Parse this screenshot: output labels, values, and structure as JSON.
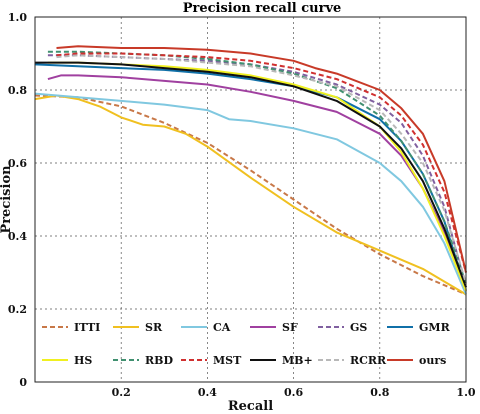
{
  "chart_data": {
    "type": "line",
    "title": "Precision recall curve",
    "xlabel": "Recall",
    "ylabel": "Precision",
    "xlim": [
      0,
      1
    ],
    "ylim": [
      0,
      1
    ],
    "xticks": [
      "0.2",
      "0.4",
      "0.6",
      "0.8",
      "1.0"
    ],
    "yticks": [
      "0",
      "0.2",
      "0.4",
      "0.6",
      "0.8",
      "1.0"
    ],
    "grid": true,
    "legend_position": "bottom-inside",
    "series": [
      {
        "name": "ITTI",
        "color": "#c87848",
        "dash": "dashed",
        "x": [
          0.0,
          0.1,
          0.2,
          0.3,
          0.4,
          0.5,
          0.6,
          0.7,
          0.8,
          0.9,
          1.0
        ],
        "y": [
          0.785,
          0.78,
          0.755,
          0.71,
          0.655,
          0.58,
          0.5,
          0.42,
          0.35,
          0.29,
          0.24
        ]
      },
      {
        "name": "SR",
        "color": "#f0c020",
        "dash": "solid",
        "x": [
          0.0,
          0.05,
          0.1,
          0.15,
          0.2,
          0.25,
          0.3,
          0.35,
          0.4,
          0.5,
          0.6,
          0.7,
          0.8,
          0.9,
          1.0
        ],
        "y": [
          0.775,
          0.785,
          0.775,
          0.755,
          0.725,
          0.705,
          0.7,
          0.68,
          0.645,
          0.56,
          0.48,
          0.41,
          0.36,
          0.31,
          0.24
        ]
      },
      {
        "name": "CA",
        "color": "#80c8e0",
        "dash": "solid",
        "x": [
          0.0,
          0.1,
          0.2,
          0.3,
          0.4,
          0.45,
          0.5,
          0.6,
          0.7,
          0.8,
          0.85,
          0.9,
          0.95,
          1.0
        ],
        "y": [
          0.79,
          0.78,
          0.77,
          0.76,
          0.745,
          0.72,
          0.715,
          0.695,
          0.665,
          0.6,
          0.55,
          0.48,
          0.38,
          0.24
        ]
      },
      {
        "name": "SF",
        "color": "#a040a0",
        "dash": "solid",
        "x": [
          0.03,
          0.06,
          0.1,
          0.2,
          0.3,
          0.4,
          0.5,
          0.6,
          0.7,
          0.8,
          0.85,
          0.9,
          0.95,
          1.0
        ],
        "y": [
          0.83,
          0.84,
          0.84,
          0.835,
          0.825,
          0.815,
          0.795,
          0.77,
          0.74,
          0.68,
          0.62,
          0.53,
          0.41,
          0.25
        ]
      },
      {
        "name": "GS",
        "color": "#8060a0",
        "dash": "dashed",
        "x": [
          0.03,
          0.1,
          0.2,
          0.3,
          0.4,
          0.5,
          0.6,
          0.7,
          0.8,
          0.85,
          0.9,
          0.95,
          1.0
        ],
        "y": [
          0.895,
          0.895,
          0.89,
          0.885,
          0.88,
          0.87,
          0.85,
          0.815,
          0.76,
          0.71,
          0.62,
          0.48,
          0.26
        ]
      },
      {
        "name": "GMR",
        "color": "#1070a8",
        "dash": "solid",
        "x": [
          0.0,
          0.1,
          0.2,
          0.3,
          0.4,
          0.5,
          0.6,
          0.7,
          0.8,
          0.85,
          0.9,
          0.95,
          1.0
        ],
        "y": [
          0.87,
          0.865,
          0.86,
          0.855,
          0.845,
          0.83,
          0.81,
          0.78,
          0.72,
          0.66,
          0.57,
          0.44,
          0.25
        ]
      },
      {
        "name": "HS",
        "color": "#f0f020",
        "dash": "solid",
        "x": [
          0.03,
          0.1,
          0.2,
          0.3,
          0.4,
          0.5,
          0.6,
          0.7,
          0.8,
          0.85,
          0.9,
          0.95,
          1.0
        ],
        "y": [
          0.875,
          0.875,
          0.87,
          0.865,
          0.855,
          0.84,
          0.815,
          0.78,
          0.7,
          0.63,
          0.53,
          0.4,
          0.25
        ]
      },
      {
        "name": "RBD",
        "color": "#409070",
        "dash": "dashed",
        "x": [
          0.03,
          0.1,
          0.2,
          0.3,
          0.4,
          0.5,
          0.6,
          0.7,
          0.8,
          0.85,
          0.9,
          0.95,
          1.0
        ],
        "y": [
          0.905,
          0.905,
          0.9,
          0.895,
          0.885,
          0.87,
          0.845,
          0.805,
          0.73,
          0.66,
          0.57,
          0.44,
          0.27
        ]
      },
      {
        "name": "MST",
        "color": "#d03030",
        "dash": "dashed",
        "x": [
          0.05,
          0.1,
          0.2,
          0.3,
          0.4,
          0.5,
          0.6,
          0.7,
          0.8,
          0.85,
          0.9,
          0.95,
          1.0
        ],
        "y": [
          0.895,
          0.9,
          0.9,
          0.895,
          0.89,
          0.88,
          0.86,
          0.83,
          0.78,
          0.73,
          0.65,
          0.52,
          0.3
        ]
      },
      {
        "name": "MB+",
        "color": "#101010",
        "dash": "solid",
        "x": [
          0.0,
          0.1,
          0.2,
          0.3,
          0.4,
          0.5,
          0.6,
          0.7,
          0.8,
          0.85,
          0.9,
          0.95,
          1.0
        ],
        "y": [
          0.875,
          0.875,
          0.87,
          0.86,
          0.85,
          0.835,
          0.81,
          0.77,
          0.7,
          0.64,
          0.55,
          0.42,
          0.26
        ]
      },
      {
        "name": "RCRR",
        "color": "#b8b8b8",
        "dash": "dashed",
        "x": [
          0.05,
          0.1,
          0.2,
          0.3,
          0.4,
          0.5,
          0.6,
          0.7,
          0.8,
          0.85,
          0.9,
          0.95,
          1.0
        ],
        "y": [
          0.89,
          0.895,
          0.89,
          0.885,
          0.875,
          0.865,
          0.84,
          0.81,
          0.745,
          0.68,
          0.6,
          0.47,
          0.27
        ]
      },
      {
        "name": "ours",
        "color": "#c83a28",
        "dash": "solid",
        "x": [
          0.05,
          0.1,
          0.2,
          0.3,
          0.4,
          0.5,
          0.6,
          0.65,
          0.7,
          0.8,
          0.85,
          0.9,
          0.95,
          1.0
        ],
        "y": [
          0.915,
          0.92,
          0.915,
          0.915,
          0.91,
          0.9,
          0.88,
          0.86,
          0.845,
          0.8,
          0.75,
          0.68,
          0.55,
          0.3
        ]
      }
    ]
  }
}
